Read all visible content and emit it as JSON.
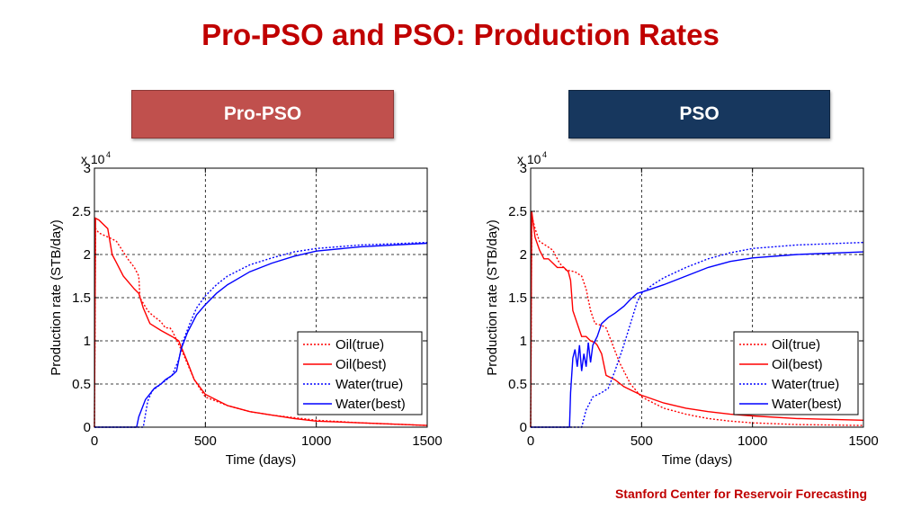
{
  "header": {
    "title": "Pro-PSO and PSO: Production Rates"
  },
  "panels": [
    {
      "label": "Pro-PSO"
    },
    {
      "label": "PSO"
    }
  ],
  "footer": {
    "text": "Stanford Center for Reservoir Forecasting"
  },
  "colors": {
    "oil": "#ff0000",
    "water": "#0000ff",
    "title": "#c00000",
    "left_button": "#c0504d",
    "right_button": "#17375e"
  },
  "chart_data": [
    {
      "type": "line",
      "panel": "Pro-PSO",
      "xlabel": "Time (days)",
      "ylabel": "Production rate (STB/day)",
      "y_multiplier": "x 10",
      "y_exponent": "4",
      "xlim": [
        0,
        1500
      ],
      "ylim": [
        0,
        3
      ],
      "xticks": [
        "0",
        "500",
        "1000",
        "1500"
      ],
      "yticks": [
        "0",
        "0.5",
        "1",
        "1.5",
        "2",
        "2.5",
        "3"
      ],
      "grid": true,
      "legend_position": "lower-right",
      "series": [
        {
          "name": "Oil(true)",
          "color": "#ff0000",
          "style": "dotted",
          "points": [
            [
              0,
              0
            ],
            [
              5,
              2.3
            ],
            [
              20,
              2.25
            ],
            [
              80,
              2.18
            ],
            [
              100,
              2.15
            ],
            [
              150,
              1.95
            ],
            [
              180,
              1.85
            ],
            [
              200,
              1.75
            ],
            [
              205,
              1.5
            ],
            [
              240,
              1.35
            ],
            [
              260,
              1.3
            ],
            [
              300,
              1.22
            ],
            [
              320,
              1.15
            ],
            [
              340,
              1.15
            ],
            [
              350,
              1.12
            ],
            [
              400,
              0.85
            ],
            [
              450,
              0.55
            ],
            [
              500,
              0.35
            ],
            [
              600,
              0.25
            ],
            [
              700,
              0.18
            ],
            [
              800,
              0.14
            ],
            [
              900,
              0.11
            ],
            [
              1000,
              0.08
            ],
            [
              1200,
              0.05
            ],
            [
              1500,
              0.02
            ]
          ]
        },
        {
          "name": "Oil(best)",
          "color": "#ff0000",
          "style": "solid",
          "points": [
            [
              0,
              0
            ],
            [
              5,
              2.42
            ],
            [
              20,
              2.4
            ],
            [
              60,
              2.3
            ],
            [
              80,
              2.0
            ],
            [
              100,
              1.9
            ],
            [
              130,
              1.75
            ],
            [
              180,
              1.6
            ],
            [
              200,
              1.55
            ],
            [
              220,
              1.38
            ],
            [
              250,
              1.2
            ],
            [
              300,
              1.12
            ],
            [
              350,
              1.05
            ],
            [
              380,
              1.0
            ],
            [
              420,
              0.75
            ],
            [
              450,
              0.55
            ],
            [
              500,
              0.38
            ],
            [
              600,
              0.25
            ],
            [
              700,
              0.18
            ],
            [
              800,
              0.14
            ],
            [
              900,
              0.1
            ],
            [
              1000,
              0.07
            ],
            [
              1200,
              0.05
            ],
            [
              1500,
              0.02
            ]
          ]
        },
        {
          "name": "Water(true)",
          "color": "#0000ff",
          "style": "dotted",
          "points": [
            [
              0,
              0
            ],
            [
              220,
              0
            ],
            [
              240,
              0.3
            ],
            [
              260,
              0.42
            ],
            [
              300,
              0.5
            ],
            [
              350,
              0.6
            ],
            [
              380,
              0.78
            ],
            [
              400,
              1.0
            ],
            [
              430,
              1.2
            ],
            [
              460,
              1.38
            ],
            [
              500,
              1.52
            ],
            [
              550,
              1.65
            ],
            [
              600,
              1.75
            ],
            [
              700,
              1.88
            ],
            [
              800,
              1.96
            ],
            [
              900,
              2.03
            ],
            [
              1000,
              2.07
            ],
            [
              1200,
              2.11
            ],
            [
              1500,
              2.14
            ]
          ]
        },
        {
          "name": "Water(best)",
          "color": "#0000ff",
          "style": "solid",
          "points": [
            [
              0,
              0
            ],
            [
              190,
              0
            ],
            [
              200,
              0.12
            ],
            [
              230,
              0.32
            ],
            [
              270,
              0.45
            ],
            [
              300,
              0.5
            ],
            [
              320,
              0.55
            ],
            [
              350,
              0.6
            ],
            [
              370,
              0.65
            ],
            [
              390,
              0.9
            ],
            [
              420,
              1.1
            ],
            [
              460,
              1.3
            ],
            [
              500,
              1.42
            ],
            [
              550,
              1.55
            ],
            [
              600,
              1.65
            ],
            [
              700,
              1.8
            ],
            [
              800,
              1.9
            ],
            [
              900,
              1.98
            ],
            [
              1000,
              2.04
            ],
            [
              1200,
              2.09
            ],
            [
              1500,
              2.13
            ]
          ]
        }
      ]
    },
    {
      "type": "line",
      "panel": "PSO",
      "xlabel": "Time (days)",
      "ylabel": "Production rate (STB/day)",
      "y_multiplier": "x 10",
      "y_exponent": "4",
      "xlim": [
        0,
        1500
      ],
      "ylim": [
        0,
        3
      ],
      "xticks": [
        "0",
        "500",
        "1000",
        "1500"
      ],
      "yticks": [
        "0",
        "0.5",
        "1",
        "1.5",
        "2",
        "2.5",
        "3"
      ],
      "grid": true,
      "legend_position": "lower-right",
      "series": [
        {
          "name": "Oil(true)",
          "color": "#ff0000",
          "style": "dotted",
          "points": [
            [
              0,
              0
            ],
            [
              5,
              2.45
            ],
            [
              20,
              2.3
            ],
            [
              40,
              2.15
            ],
            [
              60,
              2.12
            ],
            [
              100,
              2.05
            ],
            [
              130,
              1.9
            ],
            [
              160,
              1.82
            ],
            [
              200,
              1.8
            ],
            [
              230,
              1.75
            ],
            [
              250,
              1.6
            ],
            [
              270,
              1.35
            ],
            [
              290,
              1.2
            ],
            [
              320,
              1.18
            ],
            [
              340,
              1.15
            ],
            [
              370,
              0.95
            ],
            [
              400,
              0.75
            ],
            [
              450,
              0.5
            ],
            [
              500,
              0.35
            ],
            [
              600,
              0.22
            ],
            [
              700,
              0.15
            ],
            [
              800,
              0.1
            ],
            [
              900,
              0.07
            ],
            [
              1000,
              0.05
            ],
            [
              1200,
              0.03
            ],
            [
              1500,
              0.02
            ]
          ]
        },
        {
          "name": "Oil(best)",
          "color": "#ff0000",
          "style": "solid",
          "points": [
            [
              0,
              0
            ],
            [
              5,
              2.5
            ],
            [
              20,
              2.2
            ],
            [
              40,
              2.05
            ],
            [
              60,
              1.95
            ],
            [
              80,
              1.95
            ],
            [
              120,
              1.85
            ],
            [
              150,
              1.85
            ],
            [
              170,
              1.8
            ],
            [
              180,
              1.7
            ],
            [
              190,
              1.35
            ],
            [
              210,
              1.2
            ],
            [
              230,
              1.05
            ],
            [
              250,
              1.05
            ],
            [
              270,
              1.0
            ],
            [
              290,
              0.98
            ],
            [
              300,
              0.95
            ],
            [
              320,
              0.85
            ],
            [
              340,
              0.6
            ],
            [
              380,
              0.55
            ],
            [
              420,
              0.47
            ],
            [
              460,
              0.42
            ],
            [
              500,
              0.37
            ],
            [
              600,
              0.28
            ],
            [
              700,
              0.22
            ],
            [
              800,
              0.18
            ],
            [
              900,
              0.15
            ],
            [
              1000,
              0.13
            ],
            [
              1200,
              0.1
            ],
            [
              1500,
              0.08
            ]
          ]
        },
        {
          "name": "Water(true)",
          "color": "#0000ff",
          "style": "dotted",
          "points": [
            [
              0,
              0
            ],
            [
              230,
              0
            ],
            [
              250,
              0.2
            ],
            [
              280,
              0.35
            ],
            [
              320,
              0.4
            ],
            [
              350,
              0.45
            ],
            [
              380,
              0.65
            ],
            [
              420,
              0.95
            ],
            [
              450,
              1.2
            ],
            [
              480,
              1.45
            ],
            [
              500,
              1.55
            ],
            [
              550,
              1.65
            ],
            [
              600,
              1.73
            ],
            [
              700,
              1.85
            ],
            [
              800,
              1.95
            ],
            [
              900,
              2.02
            ],
            [
              1000,
              2.07
            ],
            [
              1200,
              2.11
            ],
            [
              1500,
              2.14
            ]
          ]
        },
        {
          "name": "Water(best)",
          "color": "#0000ff",
          "style": "solid",
          "points": [
            [
              0,
              0
            ],
            [
              175,
              0
            ],
            [
              180,
              0.4
            ],
            [
              190,
              0.8
            ],
            [
              200,
              0.9
            ],
            [
              210,
              0.7
            ],
            [
              220,
              0.95
            ],
            [
              230,
              0.65
            ],
            [
              240,
              0.85
            ],
            [
              250,
              0.7
            ],
            [
              260,
              0.98
            ],
            [
              270,
              0.75
            ],
            [
              280,
              0.95
            ],
            [
              300,
              1.05
            ],
            [
              320,
              1.2
            ],
            [
              350,
              1.27
            ],
            [
              380,
              1.32
            ],
            [
              420,
              1.4
            ],
            [
              450,
              1.48
            ],
            [
              480,
              1.55
            ],
            [
              520,
              1.58
            ],
            [
              600,
              1.65
            ],
            [
              700,
              1.75
            ],
            [
              800,
              1.85
            ],
            [
              900,
              1.92
            ],
            [
              1000,
              1.96
            ],
            [
              1200,
              2.0
            ],
            [
              1500,
              2.03
            ]
          ]
        }
      ]
    }
  ]
}
